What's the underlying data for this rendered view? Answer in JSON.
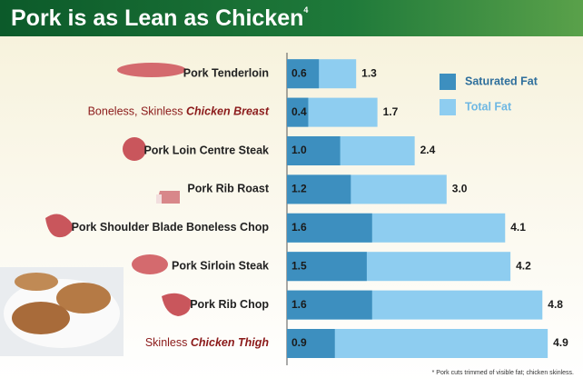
{
  "chart_data": {
    "type": "overlap-bar",
    "title": "Pork is as Lean as Chicken",
    "title_note": "4",
    "categories": [
      "Pork Tenderloin",
      {
        "plain": "Boneless, Skinless ",
        "emphasis": "Chicken Breast"
      },
      "Pork Loin Centre Steak",
      "Pork Rib Roast",
      "Pork Shoulder Blade Boneless Chop",
      "Pork Sirloin Steak",
      "Pork Rib Chop",
      {
        "plain": "Skinless ",
        "emphasis": "Chicken Thigh"
      }
    ],
    "series": [
      {
        "name": "Saturated Fat",
        "color": "#3d8fbf",
        "values": [
          0.6,
          0.4,
          1.0,
          1.2,
          1.6,
          1.5,
          1.6,
          0.9
        ],
        "value_labels": [
          "0.6",
          "0.4",
          "1.0",
          "1.2",
          "1.6",
          "1.5",
          "1.6",
          "0.9"
        ]
      },
      {
        "name": "Total Fat",
        "color": "#8ecdf0",
        "values": [
          1.3,
          1.7,
          2.4,
          3.0,
          4.1,
          4.2,
          4.8,
          4.9
        ],
        "value_labels": [
          "1.3",
          "1.7",
          "2.4",
          "3.0",
          "4.1",
          "4.2",
          "4.8",
          "4.9"
        ]
      }
    ],
    "xlim": [
      0,
      5
    ],
    "footnote": "* Pork cuts trimmed of visible fat; chicken skinless."
  }
}
